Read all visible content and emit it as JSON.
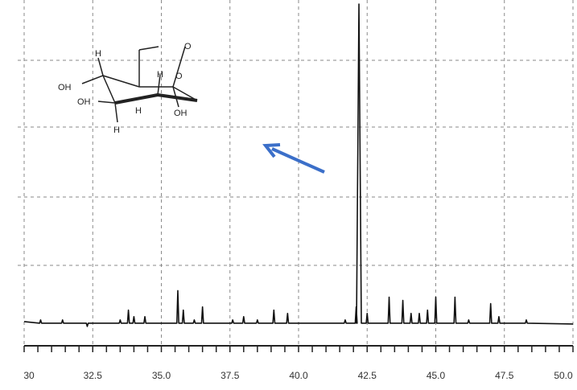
{
  "chart_data": {
    "type": "line",
    "title": "",
    "xlabel": "",
    "ylabel": "",
    "xlim": [
      30.0,
      50.0
    ],
    "ylim": [
      0,
      100
    ],
    "grid": true,
    "x_ticks": [
      "30",
      "32.5",
      "35.0",
      "37.5",
      "40.0",
      "42.5",
      "45.0",
      "47.5",
      "50.0"
    ],
    "x_tick_values": [
      30.0,
      32.5,
      35.0,
      37.5,
      40.0,
      42.5,
      45.0,
      47.5,
      50.0
    ],
    "baseline": 2,
    "series": [
      {
        "peaks": [
          {
            "x": 30.6,
            "y": 3
          },
          {
            "x": 30.9,
            "y": 2
          },
          {
            "x": 31.4,
            "y": 3
          },
          {
            "x": 31.9,
            "y": 2
          },
          {
            "x": 32.3,
            "y": 1
          },
          {
            "x": 33.2,
            "y": 2
          },
          {
            "x": 33.5,
            "y": 3
          },
          {
            "x": 33.8,
            "y": 6
          },
          {
            "x": 34.0,
            "y": 4
          },
          {
            "x": 34.4,
            "y": 4
          },
          {
            "x": 35.6,
            "y": 12
          },
          {
            "x": 35.8,
            "y": 6
          },
          {
            "x": 36.2,
            "y": 3
          },
          {
            "x": 36.5,
            "y": 7
          },
          {
            "x": 37.3,
            "y": 2
          },
          {
            "x": 37.6,
            "y": 3
          },
          {
            "x": 38.0,
            "y": 4
          },
          {
            "x": 38.5,
            "y": 3
          },
          {
            "x": 39.1,
            "y": 6
          },
          {
            "x": 39.6,
            "y": 5
          },
          {
            "x": 40.0,
            "y": 2
          },
          {
            "x": 41.2,
            "y": 2
          },
          {
            "x": 41.7,
            "y": 3
          },
          {
            "x": 42.1,
            "y": 7
          },
          {
            "x": 42.2,
            "y": 100
          },
          {
            "x": 42.5,
            "y": 5
          },
          {
            "x": 43.3,
            "y": 10
          },
          {
            "x": 43.8,
            "y": 9
          },
          {
            "x": 44.1,
            "y": 5
          },
          {
            "x": 44.4,
            "y": 5
          },
          {
            "x": 44.7,
            "y": 6
          },
          {
            "x": 45.0,
            "y": 10
          },
          {
            "x": 45.7,
            "y": 10
          },
          {
            "x": 46.2,
            "y": 3
          },
          {
            "x": 47.0,
            "y": 8
          },
          {
            "x": 47.3,
            "y": 4
          },
          {
            "x": 48.3,
            "y": 3
          }
        ]
      }
    ],
    "annotations": {
      "molecule_labels": [
        "OH",
        "OH",
        "OH",
        "H",
        "H",
        "H",
        "H",
        "O",
        "O"
      ],
      "arrow": {
        "color": "#3b6fc9",
        "direction": "up-left"
      }
    }
  }
}
